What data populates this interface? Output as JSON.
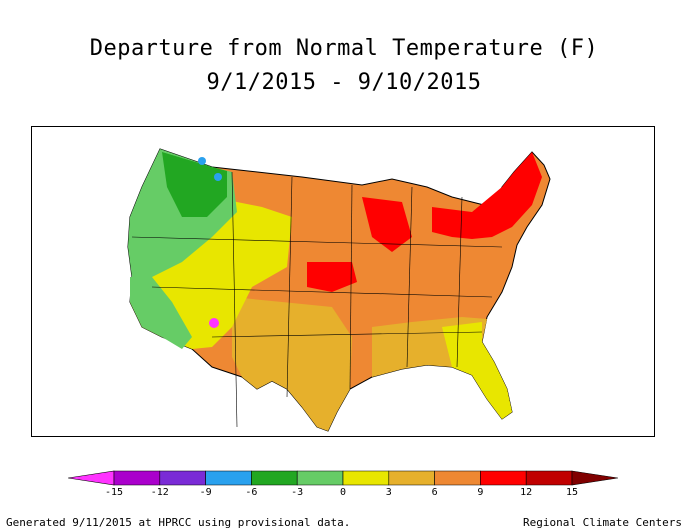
{
  "title_line1": "Departure from Normal Temperature (F)",
  "title_line2": "9/1/2015 - 9/10/2015",
  "legend": {
    "colors": [
      "#ff33ff",
      "#aa00cc",
      "#7a2bd6",
      "#2aa1ee",
      "#22a722",
      "#66cc66",
      "#e8e600",
      "#e6b02c",
      "#ee8833",
      "#ff0000",
      "#c00000",
      "#800000"
    ],
    "ticks": [
      "-15",
      "-12",
      "-9",
      "-6",
      "-3",
      "0",
      "3",
      "6",
      "9",
      "12",
      "15"
    ]
  },
  "footer_left": "Generated 9/11/2015 at HPRCC using provisional data.",
  "footer_right": "Regional Climate Centers"
}
